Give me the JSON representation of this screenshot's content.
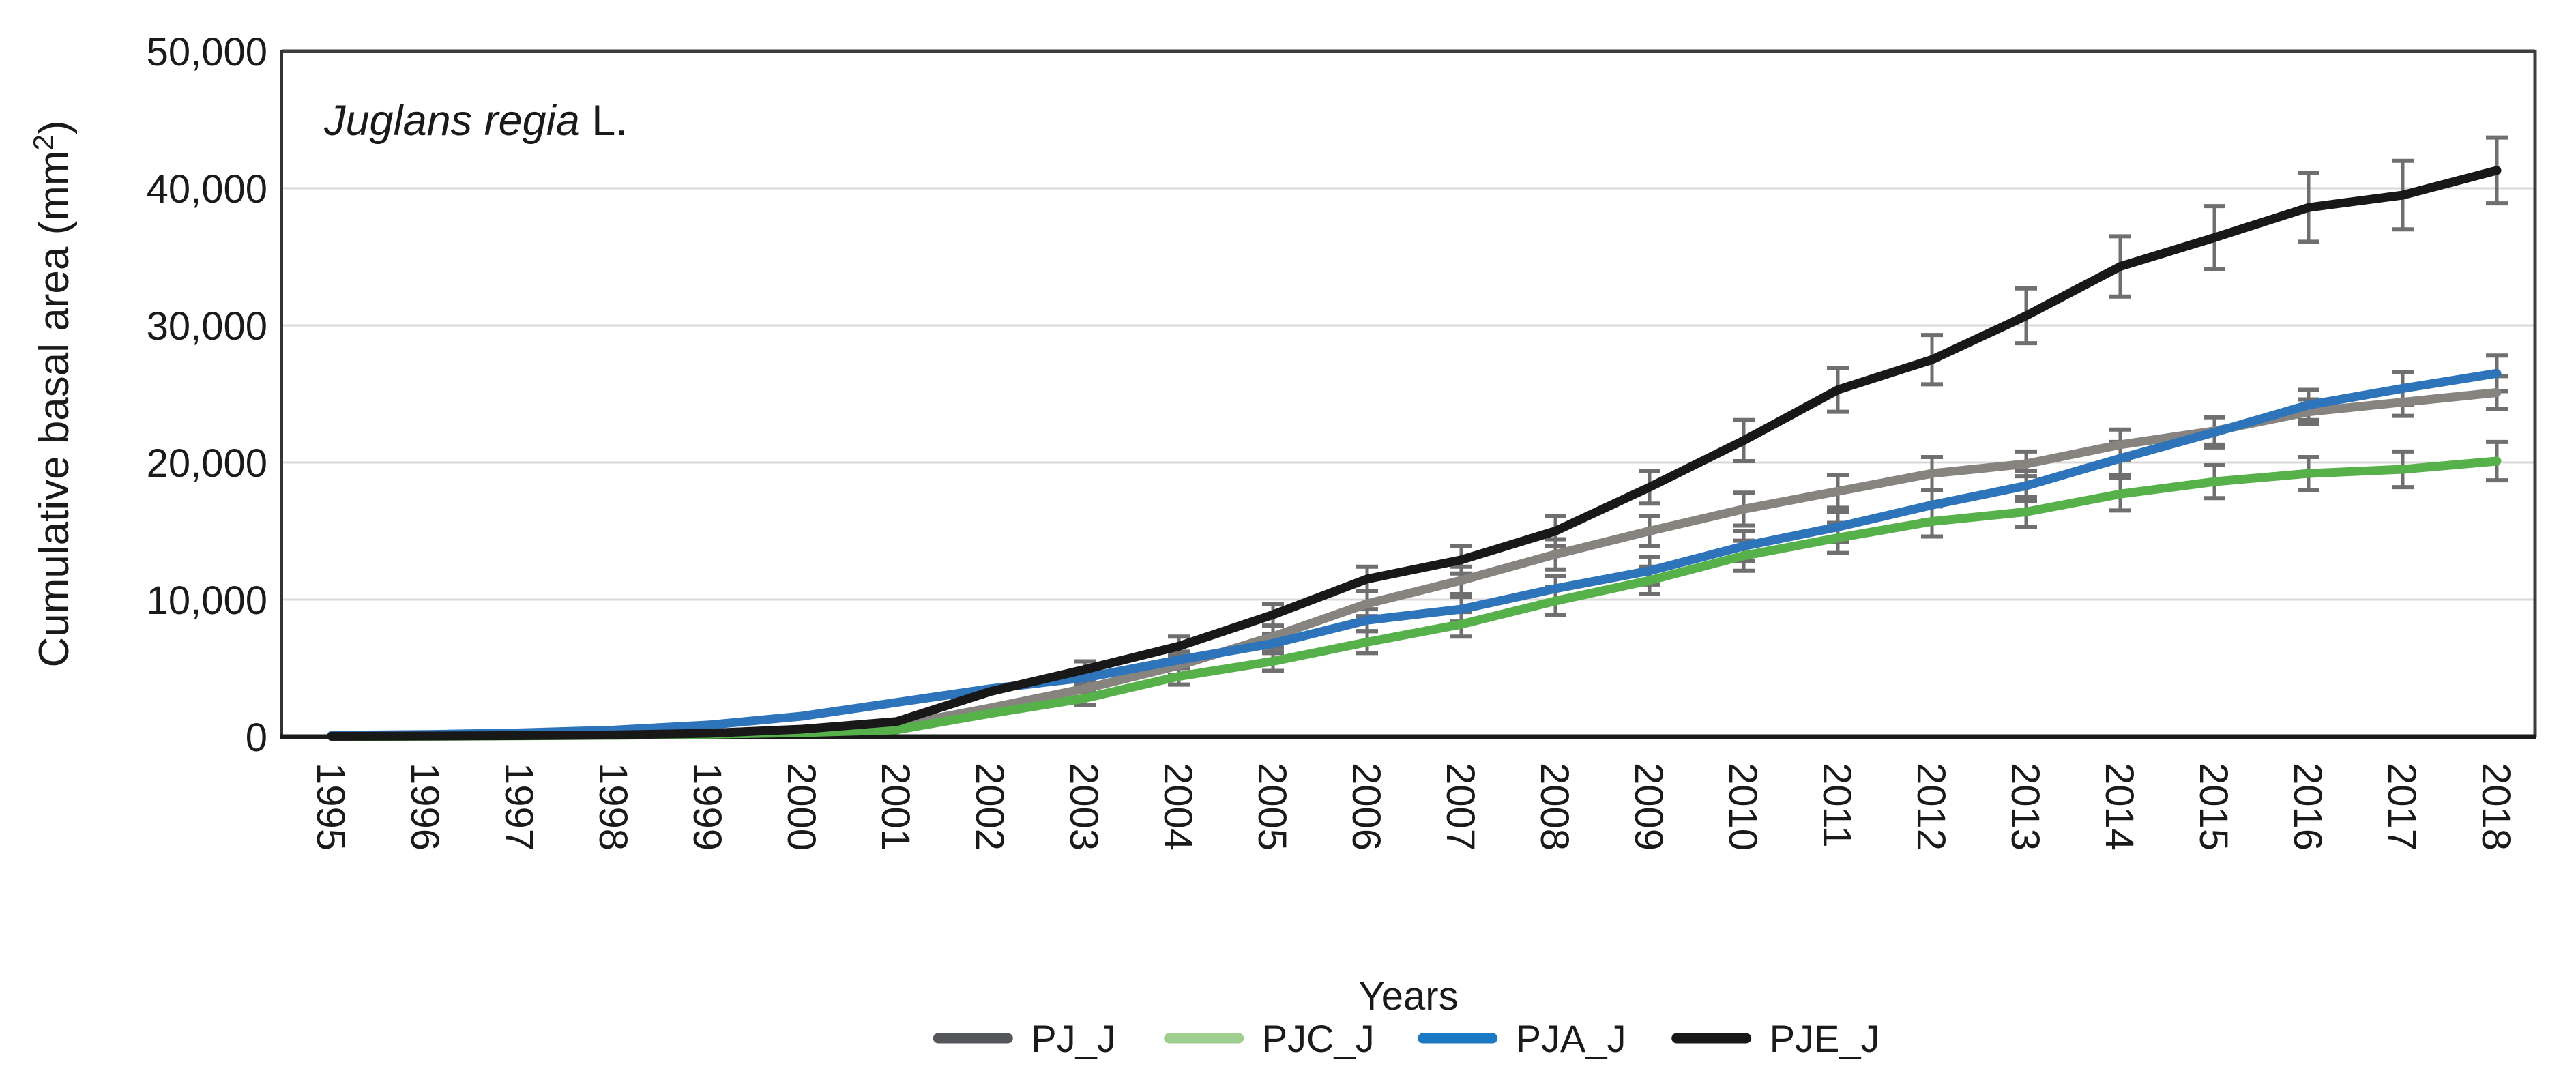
{
  "figure": {
    "species_annotation": {
      "italic": "Juglans regia",
      "suffix": " L."
    },
    "axes": {
      "y_title": {
        "prefix": "Cumulative basal area (mm",
        "superscript": "2",
        "suffix": ")"
      },
      "x_title": "Years",
      "y_tick_labels": [
        "0",
        "10,000",
        "20,000",
        "30,000",
        "40,000",
        "50,000"
      ]
    },
    "style": {
      "background": "#ffffff",
      "text_color": "#1a1a1a",
      "grid_color": "#d9d9d9",
      "frame_color": "#3e3e3e",
      "axis_color": "#1a1a1a",
      "error_bar_color": "#6f6f6f"
    }
  },
  "chart_data": {
    "type": "line",
    "title": "Juglans regia L.",
    "xlabel": "Years",
    "ylabel": "Cumulative basal area (mm2)",
    "x": [
      1995,
      1996,
      1997,
      1998,
      1999,
      2000,
      2001,
      2002,
      2003,
      2004,
      2005,
      2006,
      2007,
      2008,
      2009,
      2010,
      2011,
      2012,
      2013,
      2014,
      2015,
      2016,
      2017,
      2018
    ],
    "ylim": [
      0,
      50000
    ],
    "y_tick_interval": 10000,
    "grid": true,
    "error_bars": true,
    "legend_position": "bottom",
    "series": [
      {
        "name": "PJ_J",
        "line_color": "#87847f",
        "legend_color": "#54565a",
        "values": [
          30,
          50,
          80,
          120,
          200,
          350,
          800,
          2100,
          3500,
          5200,
          7300,
          9700,
          11400,
          13300,
          15000,
          16600,
          17900,
          19200,
          19900,
          21300,
          22300,
          23700,
          24400,
          25100
        ],
        "stderr": [
          0,
          0,
          0,
          0,
          0,
          0,
          0,
          0,
          600,
          700,
          800,
          900,
          1000,
          1100,
          1100,
          1200,
          1200,
          1200,
          900,
          1100,
          1000,
          900,
          1000,
          1200
        ]
      },
      {
        "name": "PJC_J",
        "line_color": "#57b14b",
        "legend_color": "#9fcf8e",
        "values": [
          20,
          30,
          60,
          100,
          180,
          300,
          500,
          1700,
          2800,
          4400,
          5500,
          6900,
          8200,
          9900,
          11400,
          13200,
          14500,
          15700,
          16400,
          17700,
          18600,
          19200,
          19500,
          20100
        ],
        "stderr": [
          0,
          0,
          0,
          0,
          0,
          0,
          0,
          0,
          500,
          600,
          700,
          800,
          900,
          1000,
          1000,
          1100,
          1100,
          1100,
          1100,
          1200,
          1200,
          1200,
          1300,
          1400
        ]
      },
      {
        "name": "PJA_J",
        "line_color": "#2d74ba",
        "legend_color": "#1b79c3",
        "values": [
          100,
          160,
          280,
          480,
          850,
          1500,
          2500,
          3500,
          4300,
          5600,
          6800,
          8500,
          9300,
          10800,
          12100,
          13900,
          15300,
          16900,
          18300,
          20300,
          22200,
          24200,
          25400,
          26500
        ],
        "stderr": [
          0,
          0,
          0,
          0,
          0,
          0,
          0,
          0,
          500,
          600,
          700,
          800,
          900,
          900,
          1000,
          1100,
          1100,
          1100,
          1100,
          1200,
          1100,
          1100,
          1200,
          1300
        ]
      },
      {
        "name": "PJE_J",
        "line_color": "#181818",
        "legend_color": "#181818",
        "values": [
          30,
          50,
          80,
          130,
          250,
          550,
          1100,
          3300,
          4900,
          6600,
          8900,
          11500,
          12900,
          15000,
          18200,
          21600,
          25300,
          27500,
          30700,
          34300,
          36400,
          38600,
          39500,
          41300
        ],
        "stderr": [
          0,
          0,
          0,
          0,
          0,
          0,
          0,
          0,
          600,
          700,
          800,
          900,
          1000,
          1100,
          1200,
          1500,
          1600,
          1800,
          2000,
          2200,
          2300,
          2500,
          2500,
          2400
        ]
      }
    ]
  }
}
